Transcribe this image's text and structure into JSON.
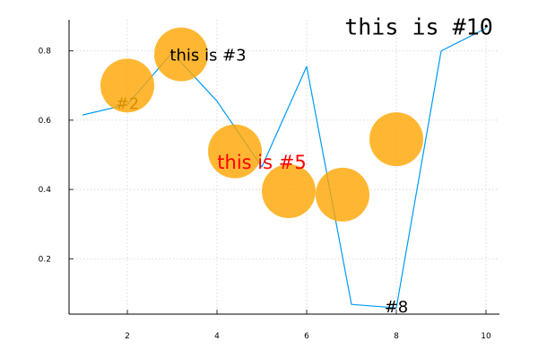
{
  "chart_data": {
    "type": "line",
    "title": "",
    "xlabel": "",
    "ylabel": "",
    "xlim": [
      0.7,
      10.3
    ],
    "ylim": [
      0.04,
      0.89
    ],
    "grid": true,
    "legend": "none",
    "x_ticks": [
      2,
      4,
      6,
      8,
      10
    ],
    "y_ticks": [
      0.2,
      0.4,
      0.6,
      0.8
    ],
    "series": [
      {
        "type": "line",
        "color": "#009af9",
        "x": [
          1,
          2,
          3,
          4,
          5,
          6,
          7,
          8,
          9,
          10
        ],
        "y": [
          0.615,
          0.645,
          0.795,
          0.655,
          0.465,
          0.755,
          0.068,
          0.058,
          0.8,
          0.865
        ]
      },
      {
        "type": "scatter",
        "color": "#ffa500",
        "opacity": 0.8,
        "x": [
          2,
          3.2,
          4.4,
          5.6,
          6.8,
          8
        ],
        "y": [
          0.7,
          0.79,
          0.51,
          0.395,
          0.385,
          0.545
        ]
      }
    ],
    "annotations": [
      {
        "text": "#2",
        "x": 2,
        "y": 0.645,
        "color": "#d98e00",
        "size": "medium",
        "font": "sans"
      },
      {
        "text": "this is #3",
        "x": 3.8,
        "y": 0.785,
        "color": "#000000",
        "size": "medium",
        "font": "sans"
      },
      {
        "text": "this is #5",
        "x": 5,
        "y": 0.475,
        "color": "#ff0000",
        "size": "large",
        "font": "sans"
      },
      {
        "text": "#8",
        "x": 8,
        "y": 0.058,
        "color": "#000000",
        "size": "medium",
        "font": "sans"
      },
      {
        "text": "this is #10",
        "x": 8.5,
        "y": 0.865,
        "color": "#000000",
        "size": "xlarge",
        "font": "mono"
      }
    ]
  }
}
